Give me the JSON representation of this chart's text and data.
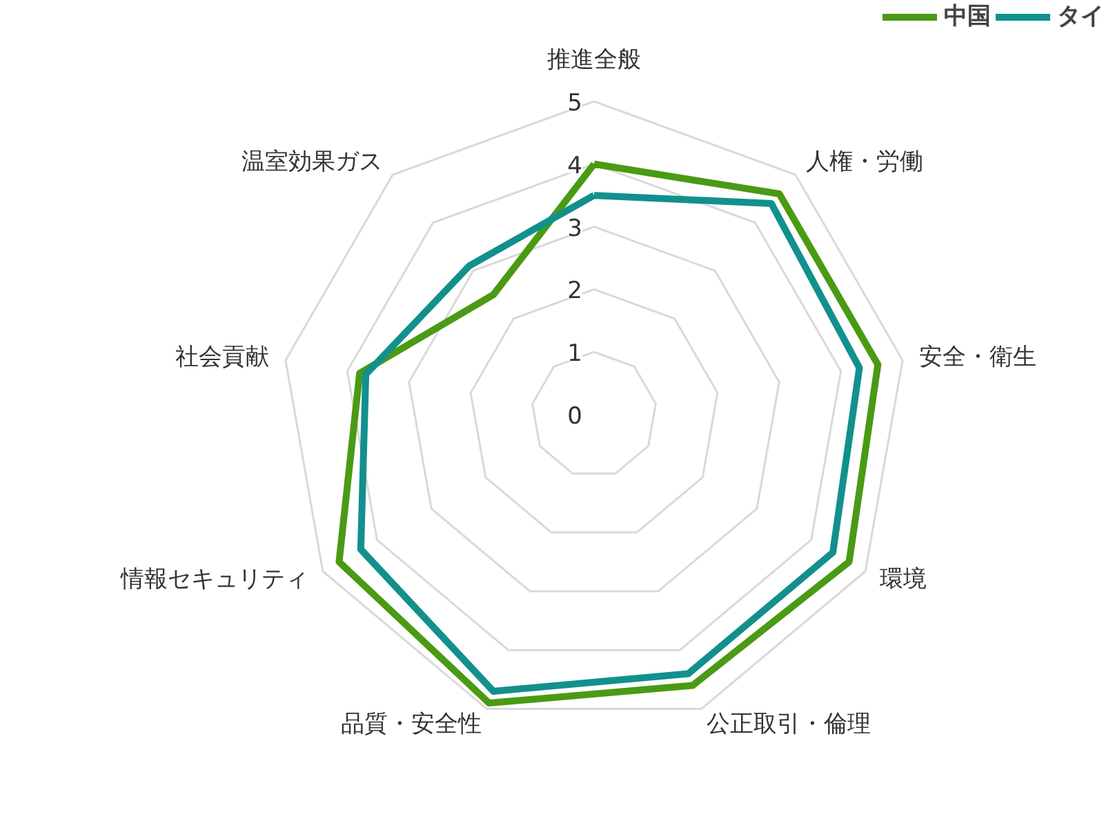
{
  "chart_data": {
    "type": "radar",
    "categories": [
      "推進全般",
      "人権・労働",
      "安全・衛生",
      "環境",
      "公正取引・倫理",
      "品質・安全性",
      "情報セキュリティ",
      "社会貢献",
      "温室効果ガス"
    ],
    "series": [
      {
        "name": "中国",
        "color": "#4a9a14",
        "values": [
          4.0,
          4.6,
          4.6,
          4.7,
          4.6,
          4.9,
          4.7,
          3.8,
          2.5
        ]
      },
      {
        "name": "タイ",
        "color": "#12908e",
        "values": [
          3.5,
          4.4,
          4.3,
          4.4,
          4.4,
          4.7,
          4.3,
          3.7,
          3.1
        ]
      }
    ],
    "ylim": [
      0,
      5
    ],
    "yticks": [
      0,
      1,
      2,
      3,
      4,
      5
    ],
    "grid": true,
    "legend": "top right"
  }
}
